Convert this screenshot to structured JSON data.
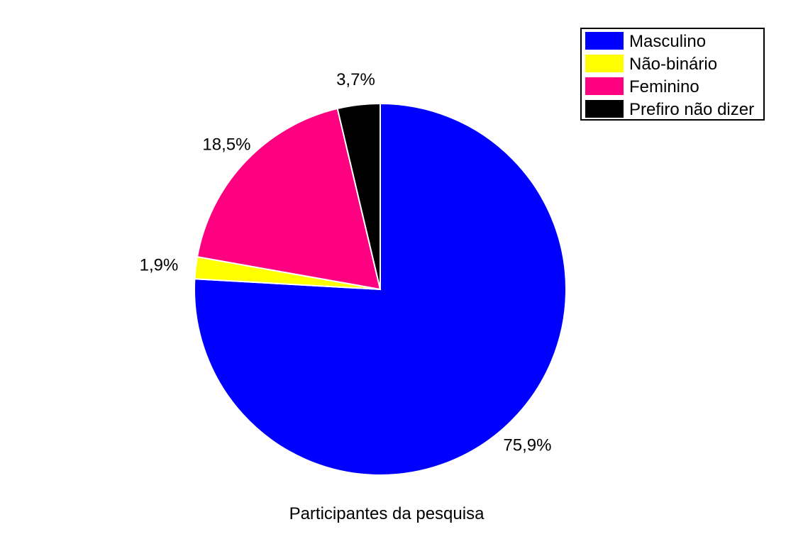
{
  "chart_data": {
    "type": "pie",
    "caption": "Participantes da pesquisa",
    "legend_position": "top-right",
    "slices": [
      {
        "label": "Masculino",
        "value": 75.9,
        "value_label": "75,9%",
        "color": "#0000ff"
      },
      {
        "label": "Não-binário",
        "value": 1.9,
        "value_label": "1,9%",
        "color": "#ffff00"
      },
      {
        "label": "Feminino",
        "value": 18.5,
        "value_label": "18,5%",
        "color": "#ff0080"
      },
      {
        "label": "Prefiro não dizer",
        "value": 3.7,
        "value_label": "3,7%",
        "color": "#000000"
      }
    ]
  }
}
